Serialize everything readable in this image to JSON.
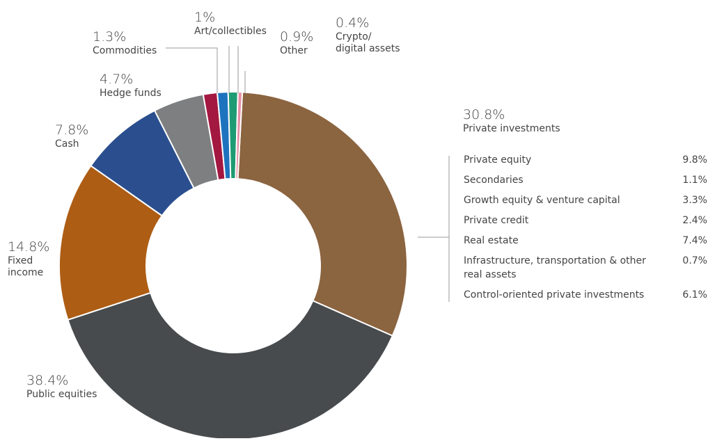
{
  "chart_data": {
    "type": "donut",
    "start_angle_deg": 3,
    "segments": [
      {
        "key": "private",
        "name": "Private investments",
        "pct_label": "30.8%",
        "value": 30.8,
        "color": "#8b6440"
      },
      {
        "key": "public",
        "name": "Public equities",
        "pct_label": "38.4%",
        "value": 38.4,
        "color": "#474b4d"
      },
      {
        "key": "fixed",
        "name": "Fixed income",
        "pct_label": "14.8%",
        "value": 14.8,
        "color": "#ad5d14"
      },
      {
        "key": "cash",
        "name": "Cash",
        "pct_label": "7.8%",
        "value": 7.8,
        "color": "#2b4f8e"
      },
      {
        "key": "hedge",
        "name": "Hedge funds",
        "pct_label": "4.7%",
        "value": 4.7,
        "color": "#7d7f80"
      },
      {
        "key": "commod",
        "name": "Commodities",
        "pct_label": "1.3%",
        "value": 1.3,
        "color": "#a31840"
      },
      {
        "key": "art",
        "name": "Art/collectibles",
        "pct_label": "1%",
        "value": 1.0,
        "color": "#1e73be"
      },
      {
        "key": "other",
        "name": "Other",
        "pct_label": "0.9%",
        "value": 0.9,
        "color": "#1e9b73"
      },
      {
        "key": "crypto",
        "name": "Crypto/ digital assets",
        "pct_label": "0.4%",
        "value": 0.4,
        "color": "#e58fa5"
      }
    ],
    "labels": {
      "private": {
        "pct": "30.8%",
        "name": "Private investments"
      },
      "public": {
        "pct": "38.4%",
        "name": "Public equities"
      },
      "fixed": {
        "pct": "14.8%",
        "line1": "Fixed",
        "line2": "income"
      },
      "cash": {
        "pct": "7.8%",
        "name": "Cash"
      },
      "hedge": {
        "pct": "4.7%",
        "name": "Hedge funds"
      },
      "commod": {
        "pct": "1.3%",
        "name": "Commodities"
      },
      "art": {
        "pct": "1%",
        "name": "Art/collectibles"
      },
      "other": {
        "pct": "0.9%",
        "name": "Other"
      },
      "crypto": {
        "pct": "0.4%",
        "line1": "Crypto/",
        "line2": "digital assets"
      }
    },
    "breakdown": [
      {
        "name": "Private equity",
        "value": "9.8%"
      },
      {
        "name": "Secondaries",
        "value": "1.1%"
      },
      {
        "name": "Growth equity & venture capital",
        "value": "3.3%"
      },
      {
        "name": "Private credit",
        "value": "2.4%"
      },
      {
        "name": "Real estate",
        "value": "7.4%"
      },
      {
        "name": "Infrastructure, transportation & other real assets",
        "value": "0.7%"
      },
      {
        "name": "Control-oriented private investments",
        "value": "6.1%"
      }
    ]
  }
}
